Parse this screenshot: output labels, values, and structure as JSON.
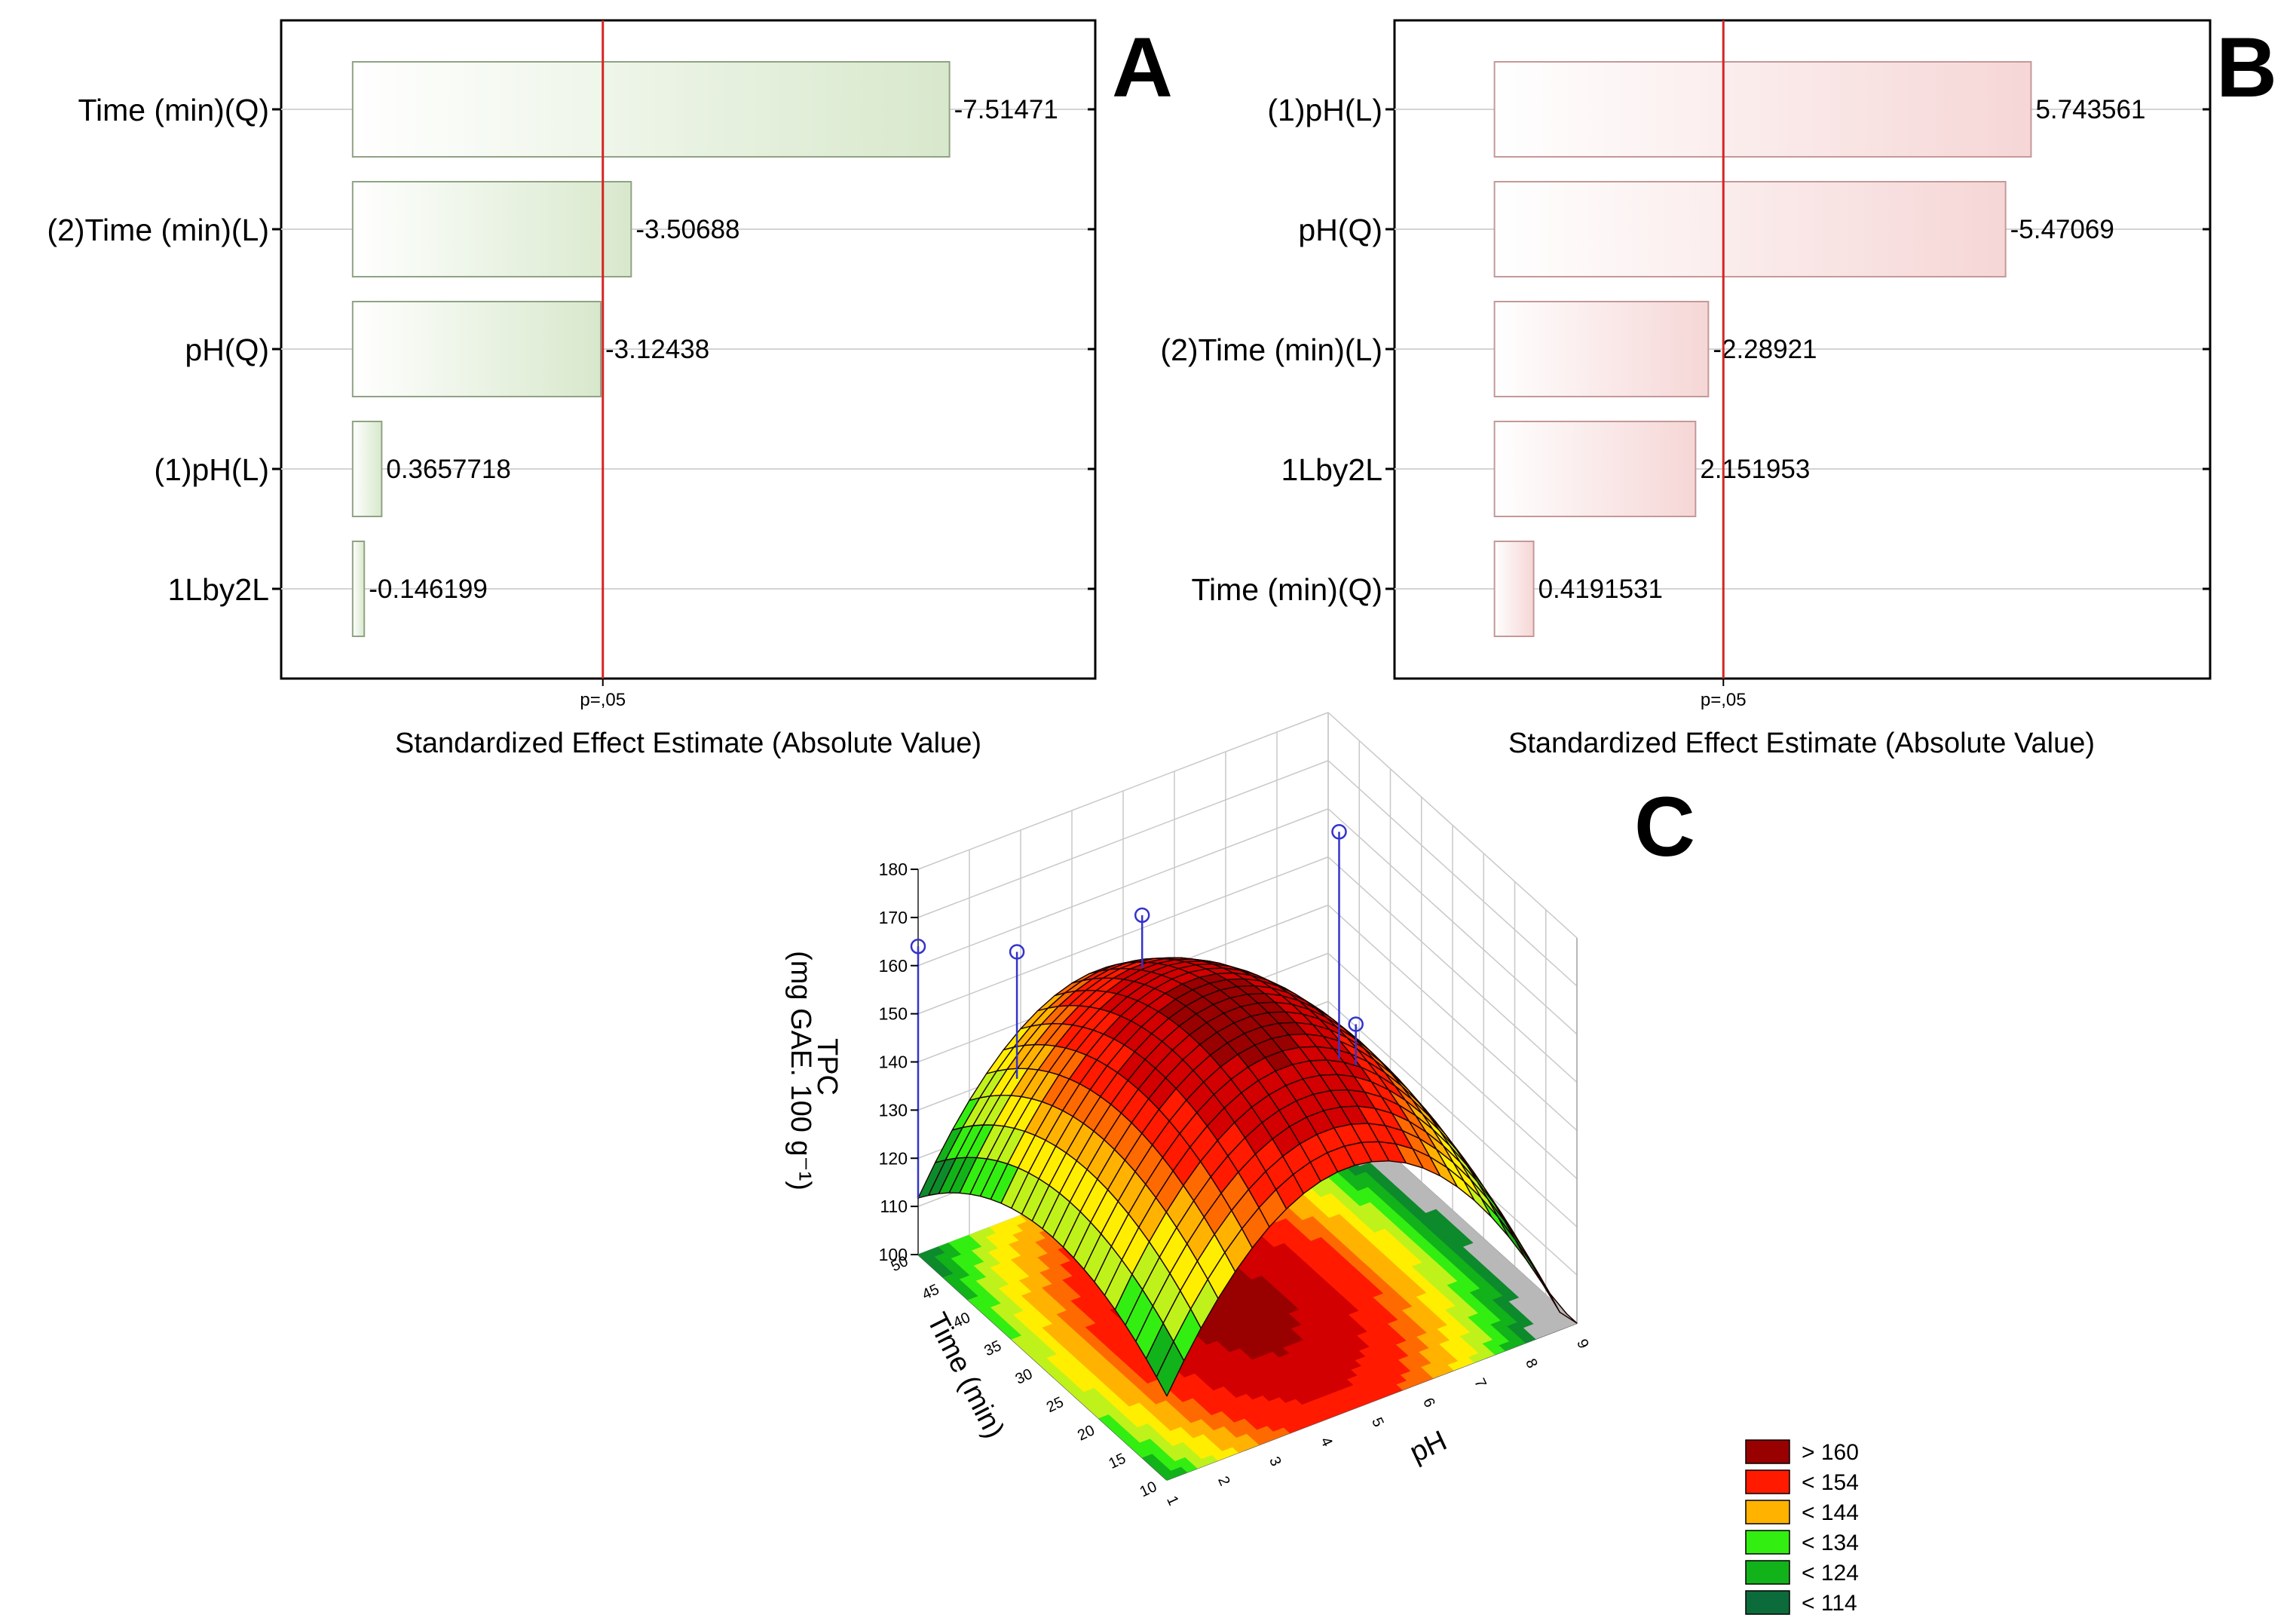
{
  "panels": {
    "a": {
      "letter": "A",
      "critical_label": "p=,05",
      "xlabel": "Standardized Effect Estimate (Absolute Value)"
    },
    "b": {
      "letter": "B",
      "critical_label": "p=,05",
      "xlabel": "Standardized Effect Estimate (Absolute Value)"
    },
    "c": {
      "letter": "C",
      "zlabel_line1": "TPC",
      "zlabel_line2": "(mg GAE. 100 g⁻¹)",
      "xlabel": "pH",
      "ylabel": "Time (min)"
    }
  },
  "legend": {
    "items": [
      {
        "label": "> 160",
        "color": "#990000"
      },
      {
        "label": "< 154",
        "color": "#ff1a00"
      },
      {
        "label": "< 144",
        "color": "#ffb300"
      },
      {
        "label": "< 134",
        "color": "#33ee11"
      },
      {
        "label": "< 124",
        "color": "#12b21a"
      },
      {
        "label": "< 114",
        "color": "#0c6b3a"
      }
    ]
  },
  "colors": {
    "bar_fill_a": "#d8e8cc",
    "bar_stroke_a": "#8fa383",
    "bar_fill_b": "#f6d6d6",
    "bar_stroke_b": "#c59898",
    "critical_line": "#d62424",
    "grid": "#d4d4d4",
    "frame": "#000000",
    "mesh": "#1a0000",
    "data_point": "#3333cc"
  },
  "chart_data": [
    {
      "type": "bar",
      "orientation": "horizontal",
      "panel": "A",
      "categories": [
        "Time (min)(Q)",
        "(2)Time (min)(L)",
        "pH(Q)",
        "(1)pH(L)",
        "1Lby2L"
      ],
      "values": [
        7.51471,
        3.50688,
        3.12438,
        0.3657718,
        0.146199
      ],
      "value_labels": [
        "-7.51471",
        "-3.50688",
        "-3.12438",
        "0.3657718",
        "-0.146199"
      ],
      "critical_value": 3.15,
      "critical_label": "p=,05",
      "xlabel": "Standardized Effect Estimate (Absolute Value)",
      "xlim": [
        -0.9,
        9.35
      ],
      "grid": true
    },
    {
      "type": "bar",
      "orientation": "horizontal",
      "panel": "B",
      "categories": [
        "(1)pH(L)",
        "pH(Q)",
        "(2)Time (min)(L)",
        "1Lby2L",
        "Time (min)(Q)"
      ],
      "values": [
        5.743561,
        5.47069,
        2.28921,
        2.151953,
        0.4191531
      ],
      "value_labels": [
        "5.743561",
        "-5.47069",
        "-2.28921",
        "2.151953",
        "0.4191531"
      ],
      "critical_value": 2.45,
      "critical_label": "p=,05",
      "xlabel": "Standardized Effect Estimate (Absolute Value)",
      "xlim": [
        -1.07,
        7.66
      ],
      "grid": true
    },
    {
      "type": "surface",
      "panel": "C",
      "x_label": "pH",
      "y_label": "Time (min)",
      "z_label": "TPC (mg GAE. 100 g⁻¹)",
      "x_ticks": [
        1,
        2,
        3,
        4,
        5,
        6,
        7,
        8,
        9
      ],
      "y_ticks": [
        10,
        15,
        20,
        25,
        30,
        35,
        40,
        45,
        50
      ],
      "z_ticks": [
        100,
        110,
        120,
        130,
        140,
        150,
        160,
        170,
        180
      ],
      "xlim": [
        1,
        9
      ],
      "ylim": [
        10,
        50
      ],
      "zlim": [
        100,
        180
      ],
      "surface_peak": {
        "ph": 4.5,
        "time": 28,
        "tpc": 162
      },
      "observed_points": [
        {
          "ph": 1,
          "time": 50,
          "tpc": 164
        },
        {
          "ph": 2.2,
          "time": 44,
          "tpc": 165
        },
        {
          "ph": 4.4,
          "time": 42,
          "tpc": 166
        },
        {
          "ph": 8,
          "time": 40,
          "tpc": 171
        },
        {
          "ph": 5.9,
          "time": 20,
          "tpc": 163
        }
      ],
      "legend": [
        "> 160",
        "< 154",
        "< 144",
        "< 134",
        "< 124",
        "< 114"
      ]
    }
  ]
}
